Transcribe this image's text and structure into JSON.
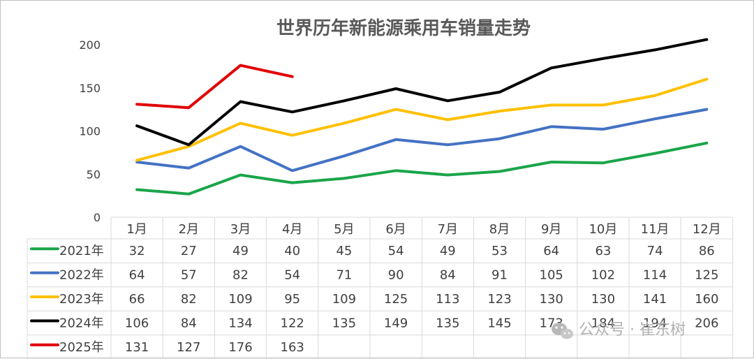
{
  "chart_data": {
    "type": "line",
    "title": "世界历年新能源乘用车销量走势",
    "categories": [
      "1月",
      "2月",
      "3月",
      "4月",
      "5月",
      "6月",
      "7月",
      "8月",
      "9月",
      "10月",
      "11月",
      "12月"
    ],
    "ylim": [
      0,
      200
    ],
    "yticks": [
      0,
      50,
      100,
      150,
      200
    ],
    "grid": false,
    "legend_placement": "data-table-left",
    "series": [
      {
        "name": "2021年",
        "color": "#1aa549",
        "values": [
          32,
          27,
          49,
          40,
          45,
          54,
          49,
          53,
          64,
          63,
          74,
          86
        ]
      },
      {
        "name": "2022年",
        "color": "#4472c4",
        "values": [
          64,
          57,
          82,
          54,
          71,
          90,
          84,
          91,
          105,
          102,
          114,
          125
        ]
      },
      {
        "name": "2023年",
        "color": "#ffc000",
        "values": [
          66,
          82,
          109,
          95,
          109,
          125,
          113,
          123,
          130,
          130,
          141,
          160
        ]
      },
      {
        "name": "2024年",
        "color": "#000000",
        "values": [
          106,
          84,
          134,
          122,
          135,
          149,
          135,
          145,
          173,
          184,
          194,
          206
        ]
      },
      {
        "name": "2025年",
        "color": "#e00000",
        "values": [
          131,
          127,
          176,
          163,
          null,
          null,
          null,
          null,
          null,
          null,
          null,
          null
        ]
      }
    ]
  },
  "watermark": {
    "text": "公众号 · 崔东树",
    "icon": "wechat-icon"
  }
}
